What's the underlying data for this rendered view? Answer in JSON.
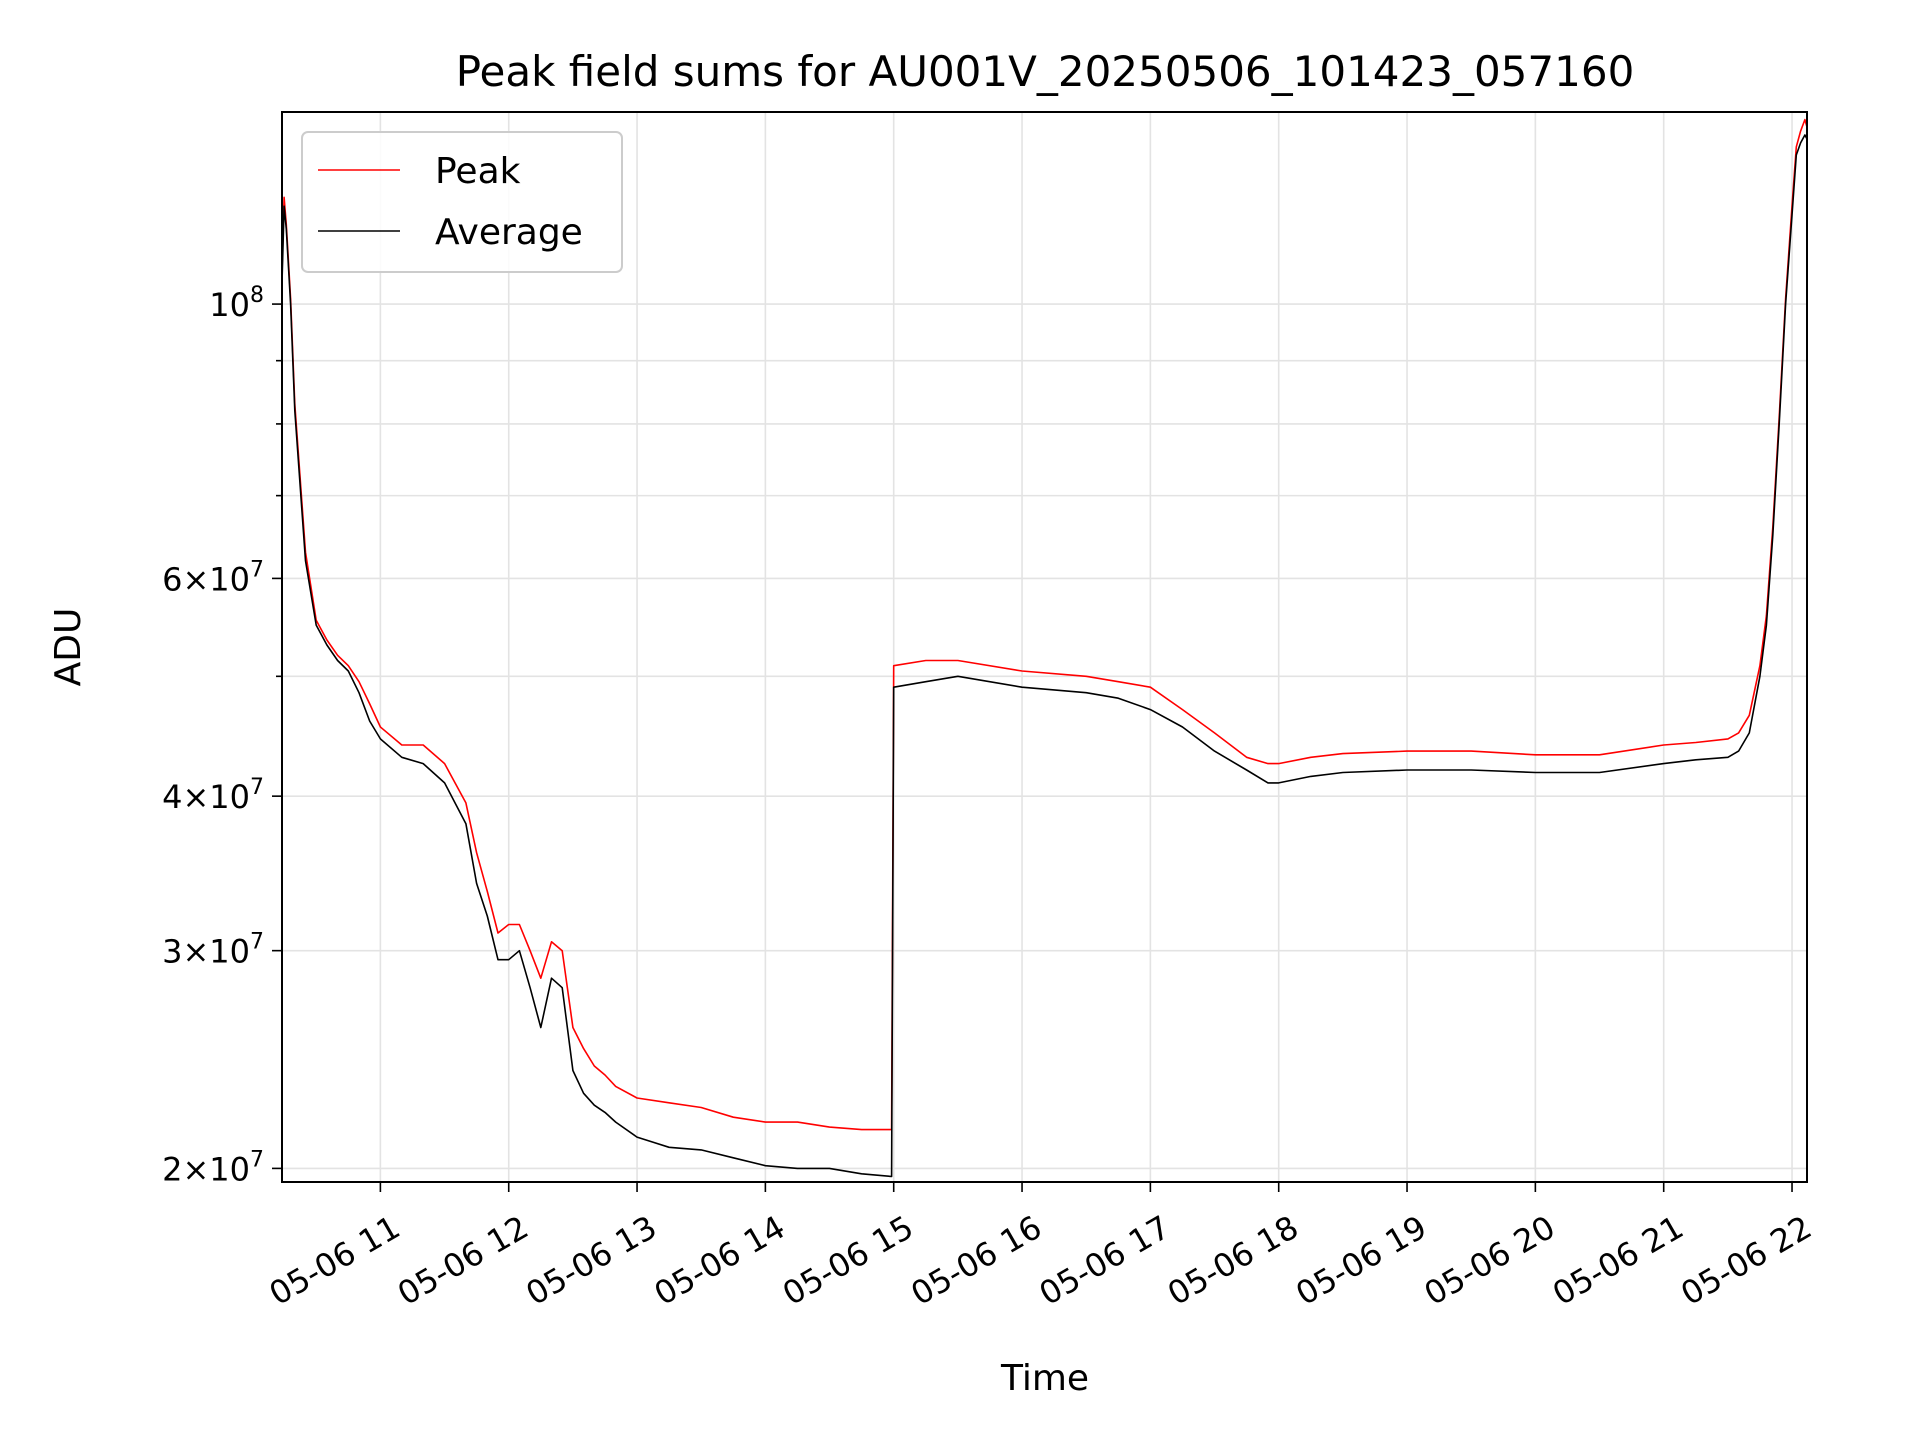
{
  "chart_data": {
    "type": "line",
    "title": "Peak field sums for AU001V_20250506_101423_057160",
    "xlabel": "Time",
    "ylabel": "ADU",
    "y_scale": "log",
    "ylim": [
      19500000,
      143000000
    ],
    "xlim": [
      "05-06 10:14",
      "05-06 22:07"
    ],
    "grid": true,
    "legend_position": "top-left",
    "x_tick_labels": [
      "05-06 11",
      "05-06 12",
      "05-06 13",
      "05-06 14",
      "05-06 15",
      "05-06 16",
      "05-06 17",
      "05-06 18",
      "05-06 19",
      "05-06 20",
      "05-06 21",
      "05-06 22"
    ],
    "x_tick_values": [
      "05-06 11:00",
      "05-06 12:00",
      "05-06 13:00",
      "05-06 14:00",
      "05-06 15:00",
      "05-06 16:00",
      "05-06 17:00",
      "05-06 18:00",
      "05-06 19:00",
      "05-06 20:00",
      "05-06 21:00",
      "05-06 22:00"
    ],
    "y_ticks": [
      {
        "value": 20000000,
        "mantissa": "2",
        "exp": "7"
      },
      {
        "value": 30000000,
        "mantissa": "3",
        "exp": "7"
      },
      {
        "value": 40000000,
        "mantissa": "4",
        "exp": "7"
      },
      {
        "value": 60000000,
        "mantissa": "6",
        "exp": "7"
      },
      {
        "value": 100000000,
        "mantissa": "",
        "exp": "8"
      }
    ],
    "y_minor_ticks": [
      50000000,
      70000000,
      80000000,
      90000000
    ],
    "series": [
      {
        "name": "Average",
        "color": "#000000",
        "x": [
          "05-06 10:14",
          "05-06 10:15",
          "05-06 10:16",
          "05-06 10:18",
          "05-06 10:20",
          "05-06 10:25",
          "05-06 10:30",
          "05-06 10:35",
          "05-06 10:40",
          "05-06 10:45",
          "05-06 10:50",
          "05-06 10:55",
          "05-06 11:00",
          "05-06 11:10",
          "05-06 11:20",
          "05-06 11:30",
          "05-06 11:40",
          "05-06 11:45",
          "05-06 11:50",
          "05-06 11:55",
          "05-06 12:00",
          "05-06 12:05",
          "05-06 12:10",
          "05-06 12:15",
          "05-06 12:20",
          "05-06 12:25",
          "05-06 12:30",
          "05-06 12:35",
          "05-06 12:40",
          "05-06 12:45",
          "05-06 12:50",
          "05-06 13:00",
          "05-06 13:15",
          "05-06 13:30",
          "05-06 13:45",
          "05-06 14:00",
          "05-06 14:15",
          "05-06 14:30",
          "05-06 14:45",
          "05-06 14:59",
          "05-06 15:00",
          "05-06 15:15",
          "05-06 15:30",
          "05-06 16:00",
          "05-06 16:30",
          "05-06 16:45",
          "05-06 17:00",
          "05-06 17:15",
          "05-06 17:30",
          "05-06 17:45",
          "05-06 17:55",
          "05-06 18:00",
          "05-06 18:15",
          "05-06 18:30",
          "05-06 19:00",
          "05-06 19:30",
          "05-06 20:00",
          "05-06 20:30",
          "05-06 21:00",
          "05-06 21:15",
          "05-06 21:30",
          "05-06 21:35",
          "05-06 21:40",
          "05-06 21:45",
          "05-06 21:48",
          "05-06 21:51",
          "05-06 21:54",
          "05-06 21:57",
          "05-06 22:00",
          "05-06 22:02",
          "05-06 22:04",
          "05-06 22:06",
          "05-06 22:07"
        ],
        "y": [
          104000000,
          120000000,
          115000000,
          100000000,
          82000000,
          62000000,
          55000000,
          53000000,
          51500000,
          50500000,
          48500000,
          46000000,
          44500000,
          43000000,
          42500000,
          41000000,
          38000000,
          34000000,
          32000000,
          29500000,
          29500000,
          30000000,
          28000000,
          26000000,
          28500000,
          28000000,
          24000000,
          23000000,
          22500000,
          22200000,
          21800000,
          21200000,
          20800000,
          20700000,
          20400000,
          20100000,
          20000000,
          20000000,
          19800000,
          19700000,
          49000000,
          49500000,
          50000000,
          49000000,
          48500000,
          48000000,
          47000000,
          45500000,
          43500000,
          42000000,
          41000000,
          41000000,
          41500000,
          41800000,
          42000000,
          42000000,
          41800000,
          41800000,
          42500000,
          42800000,
          43000000,
          43500000,
          45000000,
          50000000,
          55000000,
          65000000,
          80000000,
          100000000,
          118000000,
          132000000,
          135000000,
          137000000,
          136000000
        ]
      },
      {
        "name": "Peak",
        "color": "#ff0000",
        "x": [
          "05-06 10:14",
          "05-06 10:15",
          "05-06 10:16",
          "05-06 10:18",
          "05-06 10:20",
          "05-06 10:25",
          "05-06 10:30",
          "05-06 10:35",
          "05-06 10:40",
          "05-06 10:45",
          "05-06 10:50",
          "05-06 10:55",
          "05-06 11:00",
          "05-06 11:10",
          "05-06 11:20",
          "05-06 11:30",
          "05-06 11:40",
          "05-06 11:45",
          "05-06 11:50",
          "05-06 11:55",
          "05-06 12:00",
          "05-06 12:05",
          "05-06 12:10",
          "05-06 12:15",
          "05-06 12:20",
          "05-06 12:25",
          "05-06 12:30",
          "05-06 12:35",
          "05-06 12:40",
          "05-06 12:45",
          "05-06 12:50",
          "05-06 13:00",
          "05-06 13:15",
          "05-06 13:30",
          "05-06 13:45",
          "05-06 14:00",
          "05-06 14:15",
          "05-06 14:30",
          "05-06 14:45",
          "05-06 14:59",
          "05-06 15:00",
          "05-06 15:15",
          "05-06 15:30",
          "05-06 16:00",
          "05-06 16:30",
          "05-06 16:45",
          "05-06 17:00",
          "05-06 17:15",
          "05-06 17:30",
          "05-06 17:45",
          "05-06 17:55",
          "05-06 18:00",
          "05-06 18:15",
          "05-06 18:30",
          "05-06 19:00",
          "05-06 19:30",
          "05-06 20:00",
          "05-06 20:30",
          "05-06 21:00",
          "05-06 21:15",
          "05-06 21:30",
          "05-06 21:35",
          "05-06 21:40",
          "05-06 21:45",
          "05-06 21:48",
          "05-06 21:51",
          "05-06 21:54",
          "05-06 21:57",
          "05-06 22:00",
          "05-06 22:02",
          "05-06 22:04",
          "05-06 22:06",
          "05-06 22:07"
        ],
        "y": [
          106000000,
          122000000,
          116000000,
          101000000,
          83000000,
          63000000,
          55500000,
          53500000,
          52000000,
          51000000,
          49500000,
          47500000,
          45500000,
          44000000,
          44000000,
          42500000,
          39500000,
          36000000,
          33500000,
          31000000,
          31500000,
          31500000,
          30000000,
          28500000,
          30500000,
          30000000,
          26000000,
          25000000,
          24200000,
          23800000,
          23300000,
          22800000,
          22600000,
          22400000,
          22000000,
          21800000,
          21800000,
          21600000,
          21500000,
          21500000,
          51000000,
          51500000,
          51500000,
          50500000,
          50000000,
          49500000,
          49000000,
          47000000,
          45000000,
          43000000,
          42500000,
          42500000,
          43000000,
          43300000,
          43500000,
          43500000,
          43200000,
          43200000,
          44000000,
          44200000,
          44500000,
          45000000,
          46500000,
          51000000,
          56000000,
          66000000,
          81000000,
          101000000,
          120000000,
          134000000,
          138000000,
          141000000,
          139000000
        ]
      }
    ]
  }
}
